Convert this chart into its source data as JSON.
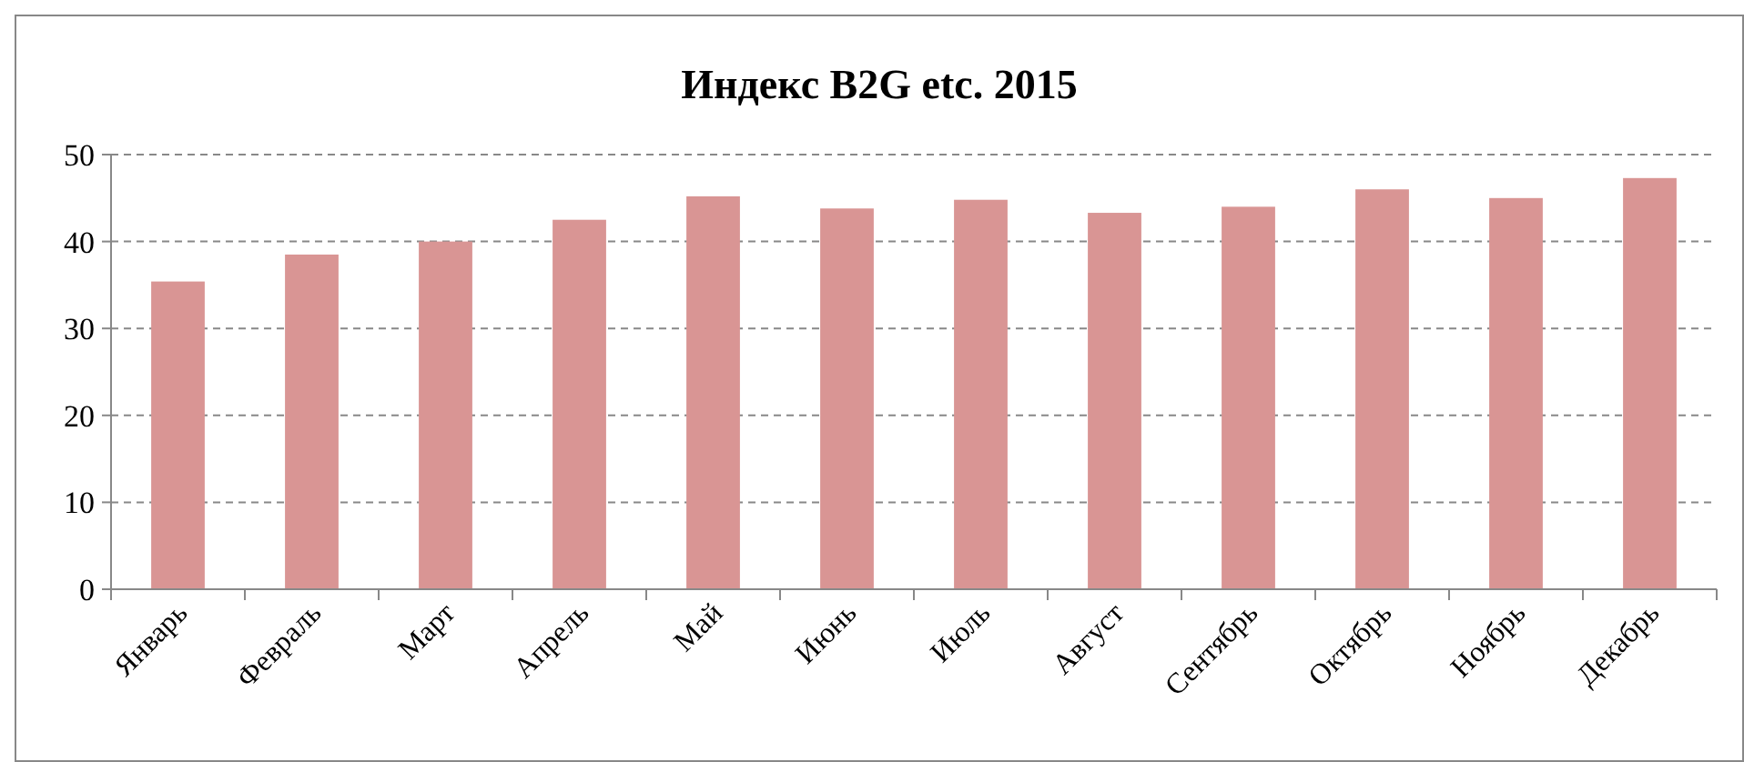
{
  "chart_data": {
    "type": "bar",
    "title": "Индекс B2G etc. 2015",
    "categories": [
      "Январь",
      "Февраль",
      "Март",
      "Апрель",
      "Май",
      "Июнь",
      "Июль",
      "Август",
      "Сентябрь",
      "Октябрь",
      "Ноябрь",
      "Декабрь"
    ],
    "values": [
      35.4,
      38.5,
      40.0,
      42.5,
      45.2,
      43.8,
      44.8,
      43.3,
      44.0,
      46.0,
      45.0,
      47.3
    ],
    "color": "#d99594",
    "ylim": [
      0,
      50
    ],
    "yticks": [
      0,
      10,
      20,
      30,
      40,
      50
    ],
    "grid": "y"
  }
}
